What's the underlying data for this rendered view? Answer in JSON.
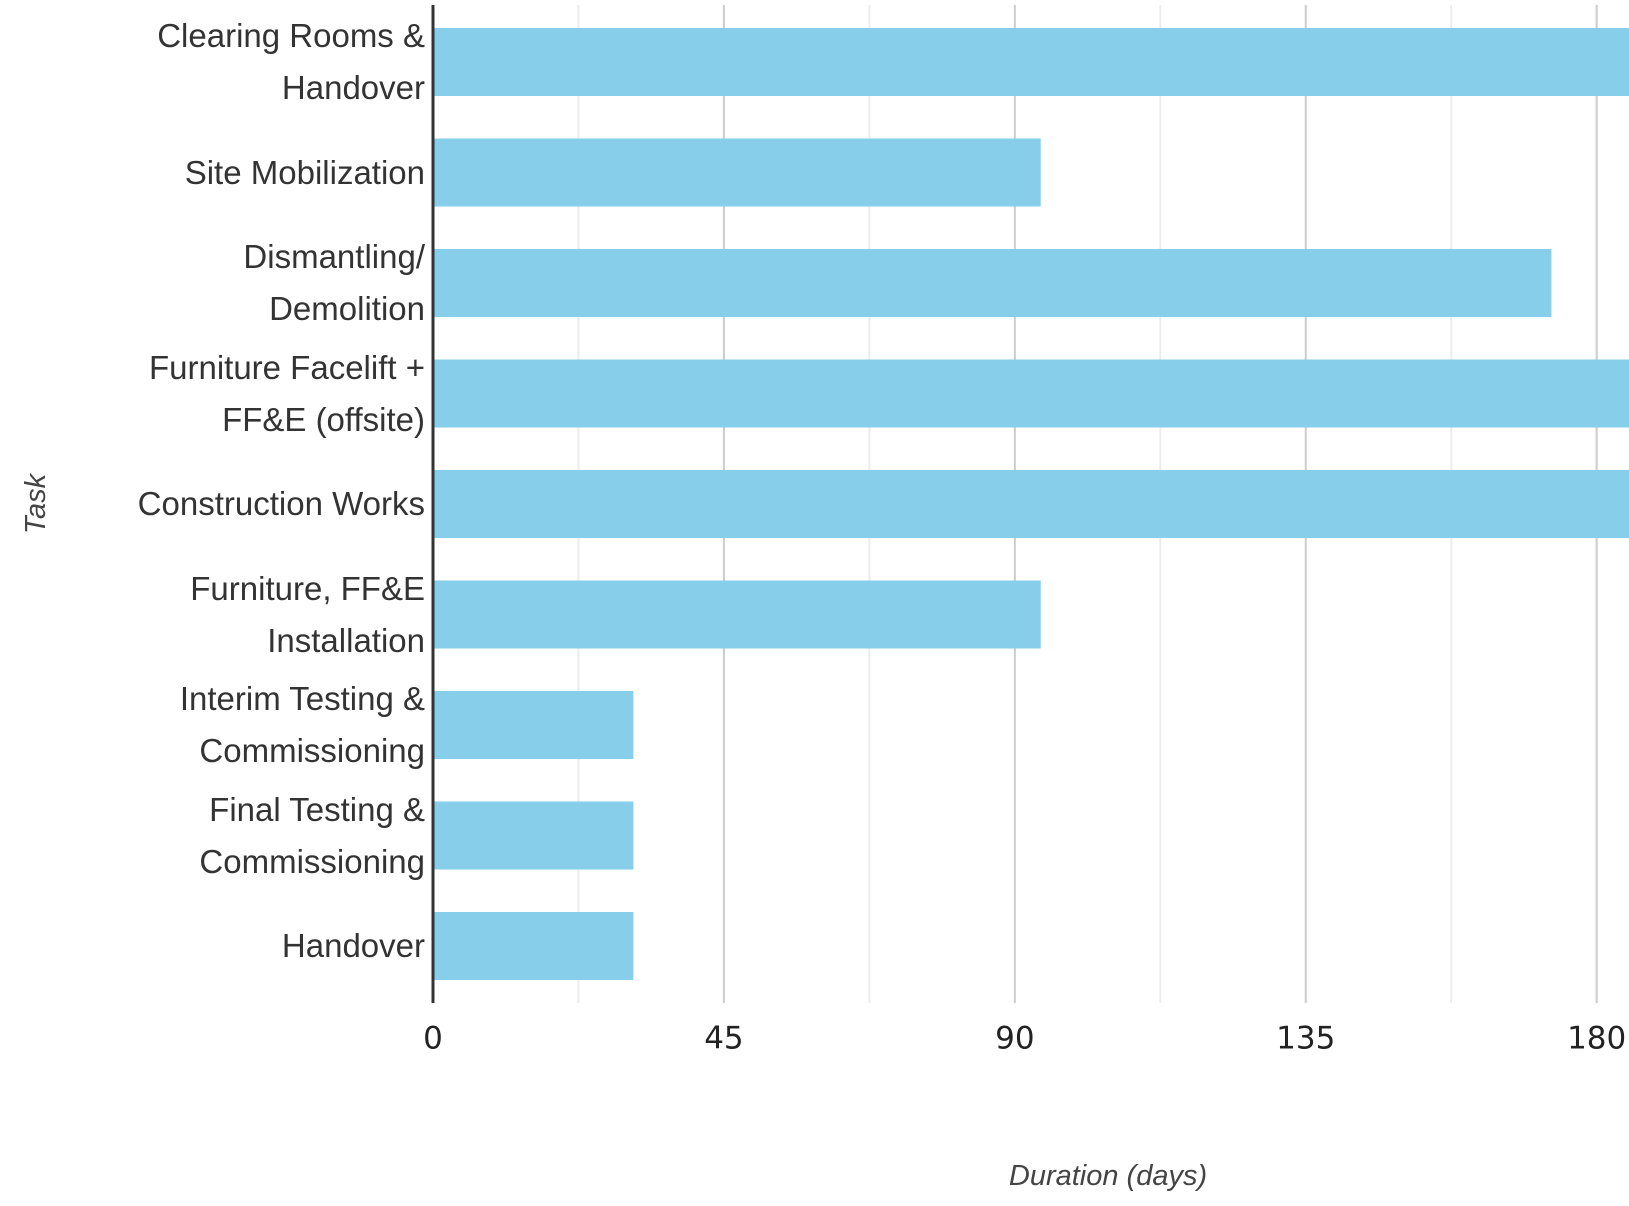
{
  "chart_data": {
    "type": "barh",
    "categories": [
      "Clearing Rooms &\nHandover",
      "Site Mobilization",
      "Dismantling/\nDemolition",
      "Furniture Facelift +\nFF&E (offsite)",
      "Construction Works",
      "Furniture, FF&E\nInstallation",
      "Interim Testing &\nCommissioning",
      "Final Testing &\nCommissioning",
      "Handover"
    ],
    "values": [
      200,
      94,
      173,
      200,
      200,
      94,
      31,
      31,
      31
    ],
    "color": "#87ceeb",
    "xlim": [
      0,
      185
    ],
    "xticks": [
      0,
      45,
      90,
      135,
      180
    ],
    "xminorticks": [
      22.5,
      67.5,
      112.5,
      157.5
    ],
    "grid": true,
    "xlabel": "Duration (days)",
    "ylabel": "Task"
  }
}
